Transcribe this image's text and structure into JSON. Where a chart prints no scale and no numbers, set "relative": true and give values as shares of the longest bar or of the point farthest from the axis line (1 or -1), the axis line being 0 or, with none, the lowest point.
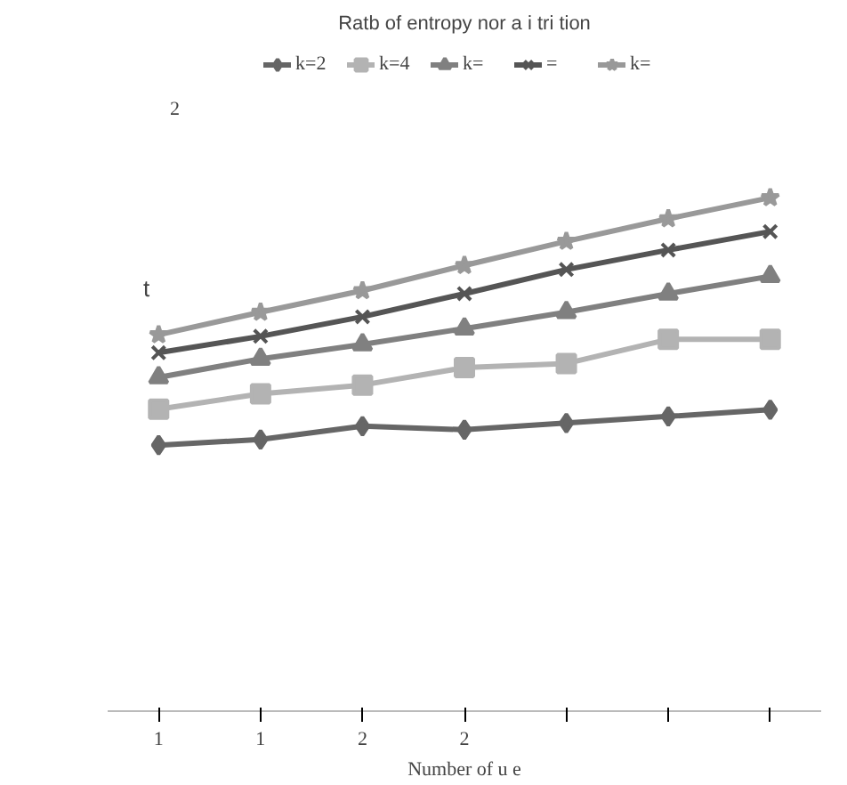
{
  "chart_data": {
    "type": "line",
    "title": "Ratb of entropy nor a i tri tion",
    "xlabel": "Number of u e",
    "ylabel": "t",
    "relative": true,
    "legend": "top",
    "grid": false,
    "categories": [
      "1",
      "1",
      "2",
      "2",
      null,
      null,
      null
    ],
    "annotations": [
      "2"
    ],
    "series": [
      {
        "name": "k=2",
        "color": "#666666",
        "marker": "diamond",
        "values": [
          0.518,
          0.529,
          0.555,
          0.548,
          0.561,
          0.574,
          0.587
        ]
      },
      {
        "name": "k=4",
        "color": "#b3b3b3",
        "marker": "square",
        "values": [
          0.588,
          0.618,
          0.635,
          0.669,
          0.677,
          0.724,
          0.724
        ]
      },
      {
        "name": "k=",
        "color": "#808080",
        "marker": "triangle",
        "values": [
          0.65,
          0.686,
          0.714,
          0.745,
          0.777,
          0.813,
          0.847
        ]
      },
      {
        "name": "=",
        "color": "#555555",
        "marker": "cross",
        "values": [
          0.698,
          0.73,
          0.768,
          0.813,
          0.86,
          0.898,
          0.934
        ]
      },
      {
        "name": "k=",
        "color": "#999999",
        "marker": "star",
        "values": [
          0.733,
          0.777,
          0.819,
          0.868,
          0.915,
          0.959,
          1.0
        ]
      }
    ]
  }
}
